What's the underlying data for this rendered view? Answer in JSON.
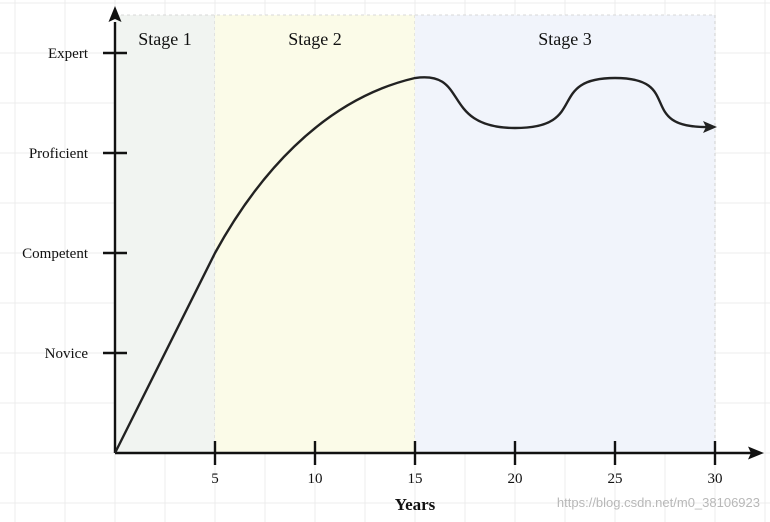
{
  "colors": {
    "grid": "#ececec",
    "axis": "#111111",
    "curve": "#222222",
    "stage1_bg": "#f1f4f1",
    "stage2_bg": "#fbfbe8",
    "stage3_bg": "#f1f4fb"
  },
  "stages": [
    {
      "label": "Stage 1",
      "from_years": 0,
      "to_years": 5
    },
    {
      "label": "Stage 2",
      "from_years": 5,
      "to_years": 15
    },
    {
      "label": "Stage 3",
      "from_years": 15,
      "to_years": 30
    }
  ],
  "y_levels": [
    {
      "label": "Novice",
      "level": 1
    },
    {
      "label": "Competent",
      "level": 2
    },
    {
      "label": "Proficient",
      "level": 3
    },
    {
      "label": "Expert",
      "level": 4
    }
  ],
  "x_ticks": [
    5,
    10,
    15,
    20,
    25,
    30
  ],
  "x_axis_title": "Years",
  "watermark": "https://blog.csdn.net/m0_38106923"
}
